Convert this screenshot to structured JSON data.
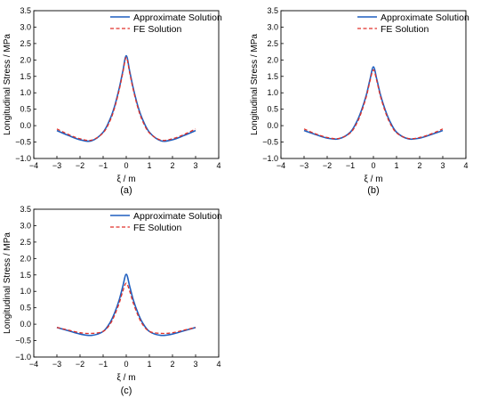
{
  "figure": {
    "panel_labels": [
      "(a)",
      "(b)",
      "(c)"
    ]
  },
  "chart_data": [
    {
      "panel": "(a)",
      "type": "line",
      "xlabel": "ξ / m",
      "ylabel": "Longitudinal Stress / MPa",
      "xlim": [
        -4,
        4
      ],
      "ylim": [
        -1.0,
        3.5
      ],
      "xticks": [
        "−4",
        "−3",
        "−2",
        "−1",
        "0",
        "1",
        "2",
        "3",
        "4"
      ],
      "yticks": [
        "−1.0",
        "−0.5",
        "0.0",
        "0.5",
        "1.0",
        "1.5",
        "2.0",
        "2.5",
        "3.0",
        "3.5"
      ],
      "legend": "top-right",
      "grid": false,
      "series": [
        {
          "name": "Approximate Solution",
          "color": "#1f5fbf",
          "style": "solid",
          "x": [
            -3,
            -2.5,
            -2,
            -1.5,
            -1,
            -0.7,
            -0.5,
            -0.3,
            -0.15,
            0,
            0.15,
            0.3,
            0.5,
            0.7,
            1,
            1.5,
            2,
            2.5,
            3
          ],
          "y": [
            -0.15,
            -0.3,
            -0.43,
            -0.46,
            -0.2,
            0.2,
            0.6,
            1.15,
            1.65,
            2.13,
            1.65,
            1.15,
            0.6,
            0.2,
            -0.2,
            -0.46,
            -0.43,
            -0.3,
            -0.15
          ]
        },
        {
          "name": "FE Solution",
          "color": "#e0312a",
          "style": "dashed",
          "x": [
            -3,
            -2.5,
            -2,
            -1.5,
            -1,
            -0.7,
            -0.5,
            -0.3,
            -0.15,
            0,
            0.15,
            0.3,
            0.5,
            0.7,
            1,
            1.5,
            2,
            2.5,
            3
          ],
          "y": [
            -0.1,
            -0.27,
            -0.4,
            -0.44,
            -0.22,
            0.15,
            0.55,
            1.1,
            1.6,
            2.08,
            1.6,
            1.1,
            0.55,
            0.15,
            -0.22,
            -0.44,
            -0.4,
            -0.27,
            -0.1
          ]
        }
      ]
    },
    {
      "panel": "(b)",
      "type": "line",
      "xlabel": "ξ / m",
      "ylabel": "Longitudinal Stress / MPa",
      "xlim": [
        -4,
        4
      ],
      "ylim": [
        -1.0,
        3.5
      ],
      "xticks": [
        "−4",
        "−3",
        "−2",
        "−1",
        "0",
        "1",
        "2",
        "3",
        "4"
      ],
      "yticks": [
        "−1.0",
        "−0.5",
        "0.0",
        "0.5",
        "1.0",
        "1.5",
        "2.0",
        "2.5",
        "3.0",
        "3.5"
      ],
      "legend": "top-right",
      "grid": false,
      "series": [
        {
          "name": "Approximate Solution",
          "color": "#1f5fbf",
          "style": "solid",
          "x": [
            -3,
            -2.5,
            -2,
            -1.5,
            -1,
            -0.7,
            -0.5,
            -0.3,
            -0.15,
            0,
            0.15,
            0.3,
            0.5,
            0.7,
            1,
            1.5,
            2,
            2.5,
            3
          ],
          "y": [
            -0.15,
            -0.27,
            -0.38,
            -0.4,
            -0.2,
            0.15,
            0.5,
            0.95,
            1.4,
            1.79,
            1.4,
            0.95,
            0.5,
            0.15,
            -0.2,
            -0.4,
            -0.38,
            -0.27,
            -0.15
          ]
        },
        {
          "name": "FE Solution",
          "color": "#e0312a",
          "style": "dashed",
          "x": [
            -3,
            -2.5,
            -2,
            -1.5,
            -1,
            -0.7,
            -0.5,
            -0.3,
            -0.15,
            0,
            0.15,
            0.3,
            0.5,
            0.7,
            1,
            1.5,
            2,
            2.5,
            3
          ],
          "y": [
            -0.1,
            -0.25,
            -0.36,
            -0.39,
            -0.22,
            0.1,
            0.45,
            0.9,
            1.35,
            1.7,
            1.35,
            0.9,
            0.45,
            0.1,
            -0.22,
            -0.39,
            -0.36,
            -0.25,
            -0.1
          ]
        }
      ]
    },
    {
      "panel": "(c)",
      "type": "line",
      "xlabel": "ξ / m",
      "ylabel": "Longitudinal Stress / MPa",
      "xlim": [
        -4,
        4
      ],
      "ylim": [
        -1.0,
        3.5
      ],
      "xticks": [
        "−4",
        "−3",
        "−2",
        "−1",
        "0",
        "1",
        "2",
        "3",
        "4"
      ],
      "yticks": [
        "−1.0",
        "−0.5",
        "0.0",
        "0.5",
        "1.0",
        "1.5",
        "2.0",
        "2.5",
        "3.0",
        "3.5"
      ],
      "legend": "top-right",
      "grid": false,
      "series": [
        {
          "name": "Approximate Solution",
          "color": "#1f5fbf",
          "style": "solid",
          "x": [
            -3,
            -2.5,
            -2,
            -1.5,
            -1,
            -0.7,
            -0.5,
            -0.3,
            -0.15,
            0,
            0.15,
            0.3,
            0.5,
            0.7,
            1,
            1.5,
            2,
            2.5,
            3
          ],
          "y": [
            -0.1,
            -0.2,
            -0.3,
            -0.34,
            -0.22,
            0.05,
            0.35,
            0.75,
            1.15,
            1.52,
            1.15,
            0.75,
            0.35,
            0.05,
            -0.22,
            -0.34,
            -0.3,
            -0.2,
            -0.1
          ]
        },
        {
          "name": "FE Solution",
          "color": "#e0312a",
          "style": "dashed",
          "x": [
            -3,
            -2.5,
            -2,
            -1.5,
            -1,
            -0.7,
            -0.5,
            -0.3,
            -0.15,
            0,
            0.15,
            0.3,
            0.5,
            0.7,
            1,
            1.5,
            2,
            2.5,
            3
          ],
          "y": [
            -0.1,
            -0.18,
            -0.26,
            -0.28,
            -0.22,
            0.0,
            0.28,
            0.65,
            1.0,
            1.25,
            1.0,
            0.65,
            0.28,
            0.0,
            -0.22,
            -0.28,
            -0.26,
            -0.18,
            -0.1
          ]
        }
      ]
    }
  ]
}
